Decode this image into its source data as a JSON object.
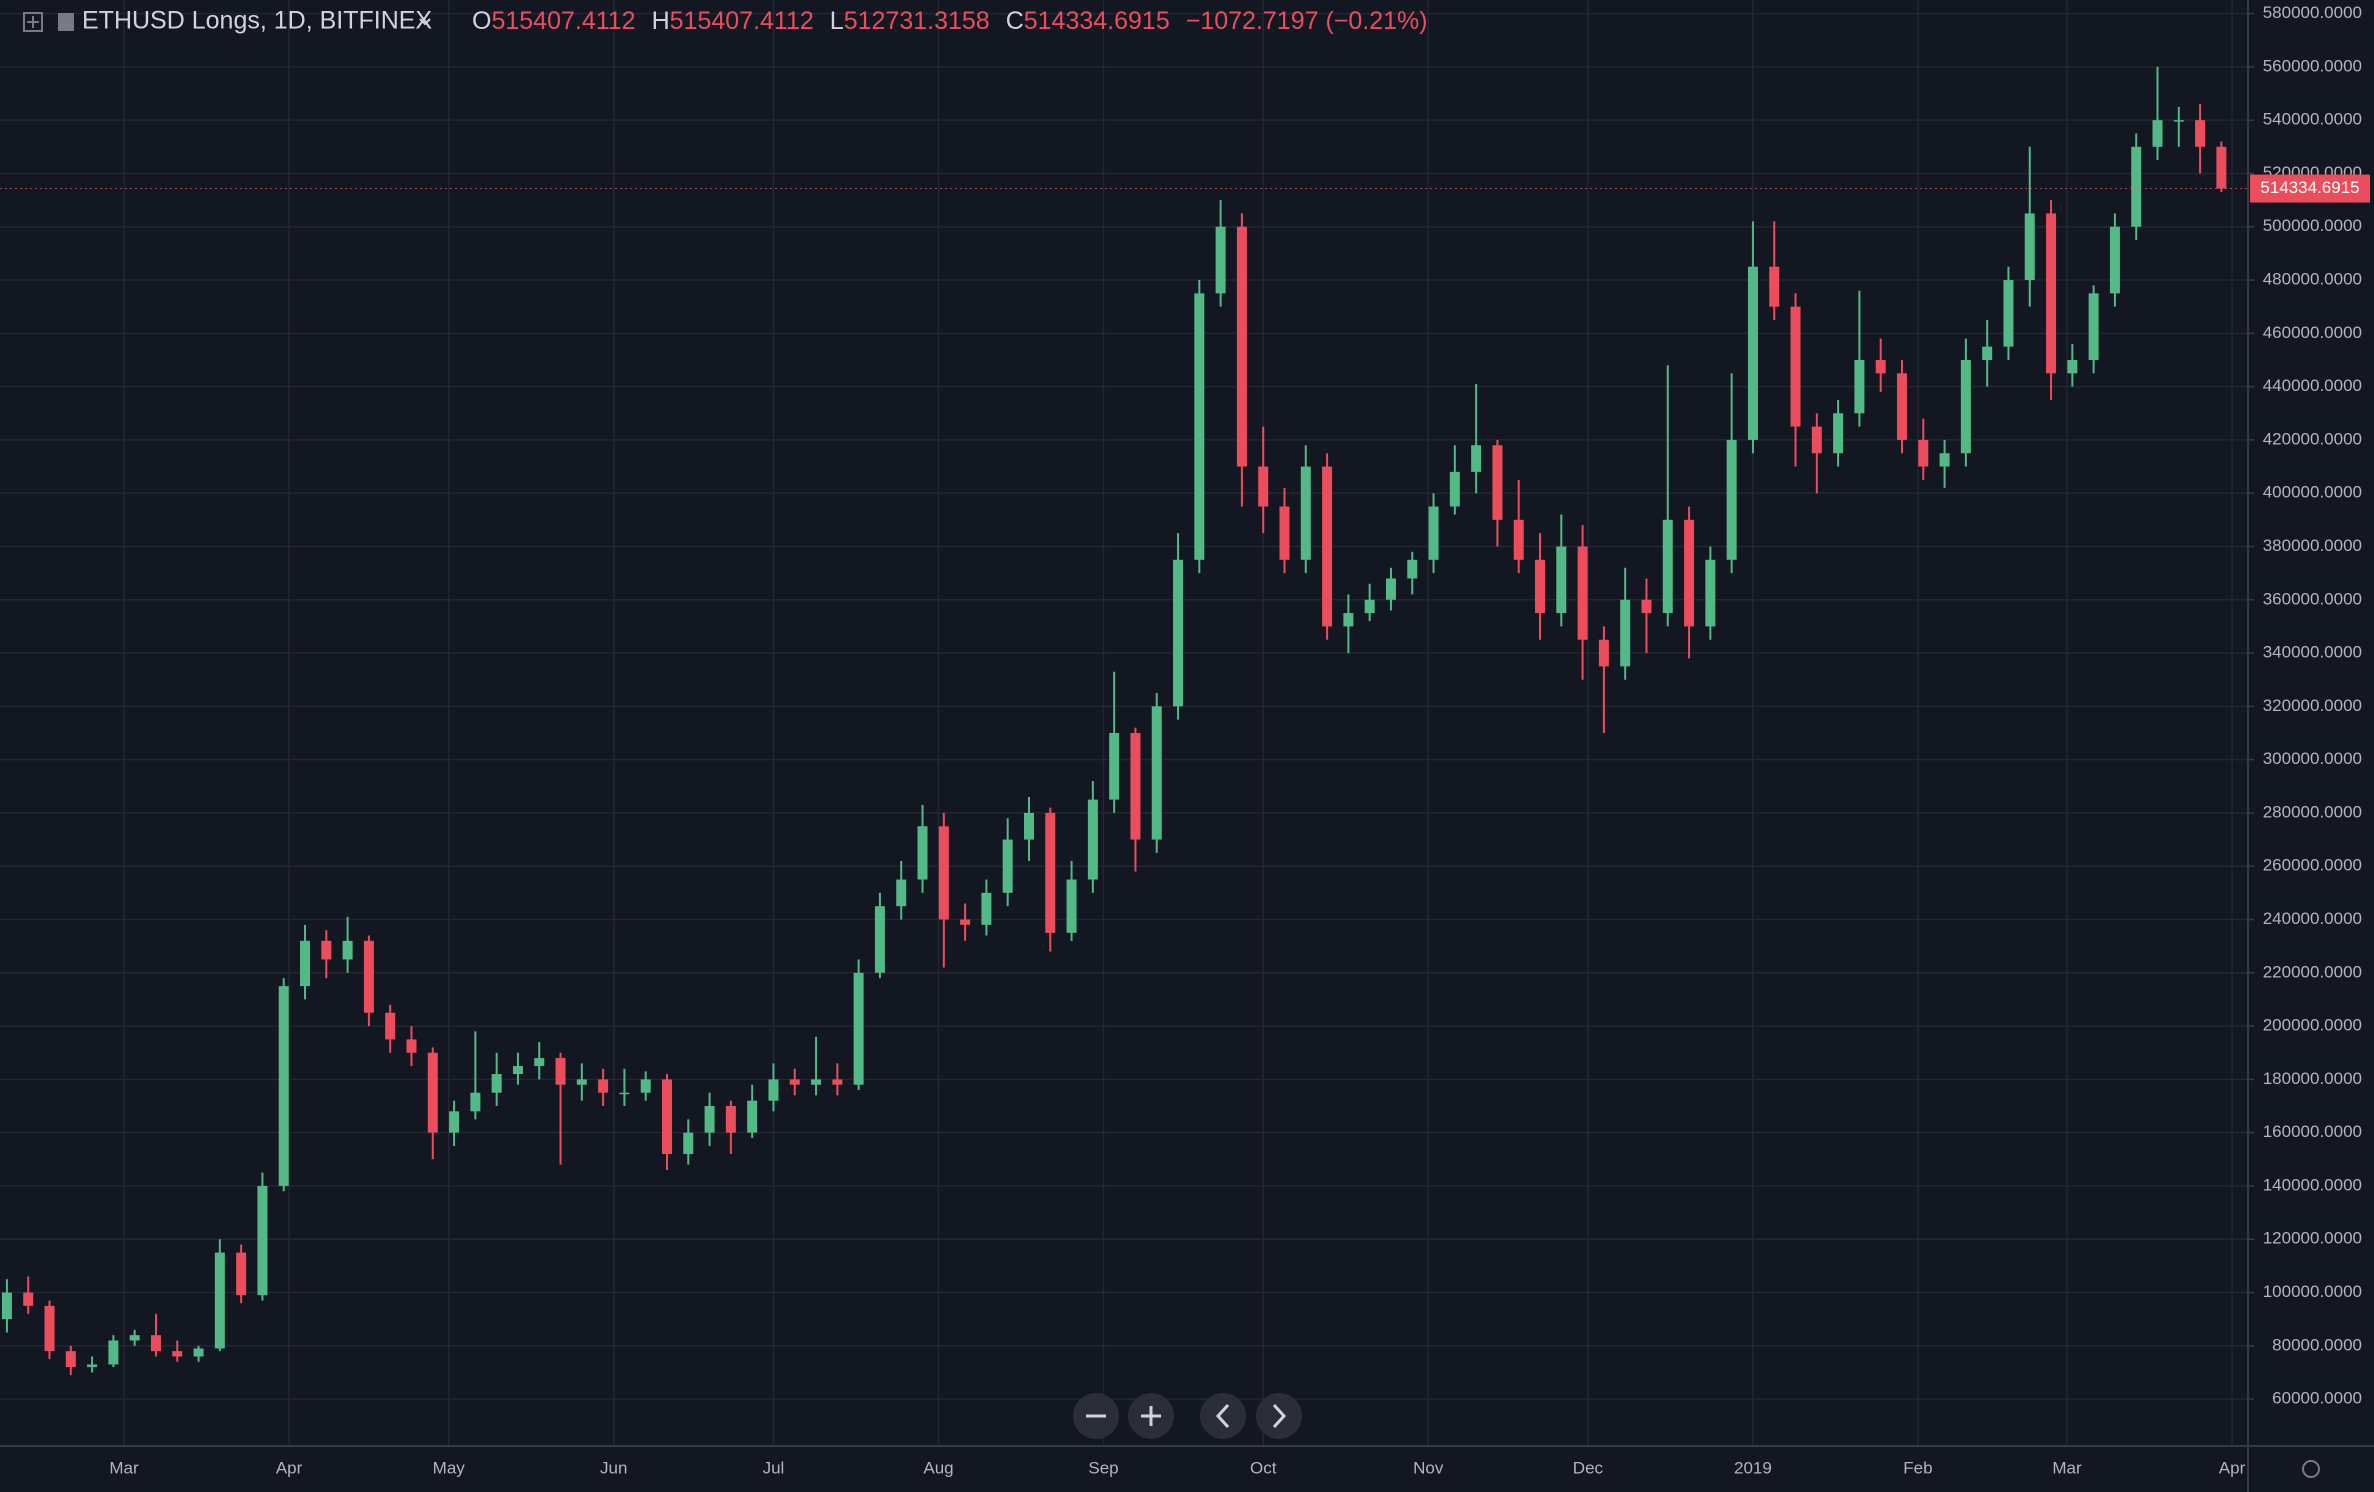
{
  "header": {
    "symbol": "ETHUSD Longs, 1D, BITFINEX",
    "ohlc": [
      {
        "key": "O",
        "value": "515407.4112"
      },
      {
        "key": "H",
        "value": "515407.4112"
      },
      {
        "key": "L",
        "value": "512731.3158"
      },
      {
        "key": "C",
        "value": "514334.6915"
      }
    ],
    "change": "−1072.7197 (−0.21%)"
  },
  "chart_data": {
    "type": "candlestick",
    "up_color": "#53b987",
    "down_color": "#eb4d5c",
    "grid": true,
    "xlim": [
      -23.3,
      399
    ],
    "ylim": [
      42400,
      585100
    ],
    "xticks": [
      {
        "value": 0,
        "label": "Mar"
      },
      {
        "value": 31,
        "label": "Apr"
      },
      {
        "value": 61,
        "label": "May"
      },
      {
        "value": 92,
        "label": "Jun"
      },
      {
        "value": 122,
        "label": "Jul"
      },
      {
        "value": 153,
        "label": "Aug"
      },
      {
        "value": 184,
        "label": "Sep"
      },
      {
        "value": 214,
        "label": "Oct"
      },
      {
        "value": 245,
        "label": "Nov"
      },
      {
        "value": 275,
        "label": "Dec"
      },
      {
        "value": 306,
        "label": "2019"
      },
      {
        "value": 337,
        "label": "Feb"
      },
      {
        "value": 365,
        "label": "Mar"
      },
      {
        "value": 396,
        "label": "Apr"
      }
    ],
    "yticks": [
      {
        "value": 60000,
        "label": "60000.0000"
      },
      {
        "value": 80000,
        "label": "80000.0000"
      },
      {
        "value": 100000,
        "label": "100000.0000"
      },
      {
        "value": 120000,
        "label": "120000.0000"
      },
      {
        "value": 140000,
        "label": "140000.0000"
      },
      {
        "value": 160000,
        "label": "160000.0000"
      },
      {
        "value": 180000,
        "label": "180000.0000"
      },
      {
        "value": 200000,
        "label": "200000.0000"
      },
      {
        "value": 220000,
        "label": "220000.0000"
      },
      {
        "value": 240000,
        "label": "240000.0000"
      },
      {
        "value": 260000,
        "label": "260000.0000"
      },
      {
        "value": 280000,
        "label": "280000.0000"
      },
      {
        "value": 300000,
        "label": "300000.0000"
      },
      {
        "value": 320000,
        "label": "320000.0000"
      },
      {
        "value": 340000,
        "label": "340000.0000"
      },
      {
        "value": 360000,
        "label": "360000.0000"
      },
      {
        "value": 380000,
        "label": "380000.0000"
      },
      {
        "value": 400000,
        "label": "400000.0000"
      },
      {
        "value": 420000,
        "label": "420000.0000"
      },
      {
        "value": 440000,
        "label": "440000.0000"
      },
      {
        "value": 460000,
        "label": "460000.0000"
      },
      {
        "value": 480000,
        "label": "480000.0000"
      },
      {
        "value": 500000,
        "label": "500000.0000"
      },
      {
        "value": 520000,
        "label": "520000.0000"
      },
      {
        "value": 540000,
        "label": "540000.0000"
      },
      {
        "value": 560000,
        "label": "560000.0000"
      },
      {
        "value": 580000,
        "label": "580000.0000"
      }
    ],
    "last_price": {
      "value": 514334.6915,
      "label": "514334.6915"
    },
    "x": [
      -22,
      -18,
      -14,
      -10,
      -6,
      -2,
      2,
      6,
      10,
      14,
      18,
      22,
      26,
      30,
      34,
      38,
      42,
      46,
      50,
      54,
      58,
      62,
      66,
      70,
      74,
      78,
      82,
      86,
      90,
      94,
      98,
      102,
      106,
      110,
      114,
      118,
      122,
      126,
      130,
      134,
      138,
      142,
      146,
      150,
      154,
      158,
      162,
      166,
      170,
      174,
      178,
      182,
      186,
      190,
      194,
      198,
      202,
      206,
      210,
      214,
      218,
      222,
      226,
      230,
      234,
      238,
      242,
      246,
      250,
      254,
      258,
      262,
      266,
      270,
      274,
      278,
      282,
      286,
      290,
      294,
      298,
      302,
      306,
      310,
      314,
      318,
      322,
      326,
      330,
      334,
      338,
      342,
      346,
      350,
      354,
      358,
      362,
      366,
      370,
      374,
      378,
      382,
      386,
      390,
      394
    ],
    "open": [
      90000,
      100000,
      95000,
      78000,
      72000,
      73000,
      82000,
      84000,
      78000,
      76000,
      79000,
      115000,
      99000,
      140000,
      215000,
      232000,
      225000,
      232000,
      205000,
      195000,
      190000,
      160000,
      168000,
      175000,
      182000,
      185000,
      188000,
      178000,
      180000,
      175000,
      175000,
      180000,
      152000,
      160000,
      170000,
      160000,
      172000,
      180000,
      178000,
      180000,
      178000,
      220000,
      245000,
      255000,
      275000,
      240000,
      238000,
      250000,
      270000,
      280000,
      235000,
      255000,
      285000,
      310000,
      270000,
      320000,
      375000,
      475000,
      500000,
      410000,
      395000,
      375000,
      410000,
      350000,
      355000,
      360000,
      368000,
      375000,
      395000,
      408000,
      418000,
      390000,
      375000,
      355000,
      380000,
      345000,
      335000,
      360000,
      355000,
      390000,
      350000,
      375000,
      420000,
      485000,
      470000,
      425000,
      415000,
      430000,
      450000,
      445000,
      420000,
      410000,
      415000,
      450000,
      455000,
      480000,
      505000,
      445000,
      450000,
      475000,
      500000,
      530000,
      540000,
      540000,
      530000
    ],
    "high": [
      105000,
      106000,
      97000,
      80000,
      76000,
      84000,
      86000,
      92000,
      82000,
      80000,
      120000,
      118000,
      145000,
      218000,
      238000,
      236000,
      241000,
      234000,
      208000,
      200000,
      192000,
      172000,
      198000,
      190000,
      190000,
      194000,
      190000,
      186000,
      184000,
      184000,
      183000,
      182000,
      165000,
      175000,
      172000,
      178000,
      186000,
      184000,
      196000,
      186000,
      225000,
      250000,
      262000,
      283000,
      280000,
      246000,
      255000,
      278000,
      286000,
      282000,
      262000,
      292000,
      333000,
      312000,
      325000,
      385000,
      480000,
      510000,
      505000,
      425000,
      402000,
      418000,
      415000,
      362000,
      366000,
      372000,
      378000,
      400000,
      418000,
      441000,
      420000,
      405000,
      385000,
      392000,
      388000,
      350000,
      372000,
      368000,
      448000,
      395000,
      380000,
      445000,
      502000,
      502000,
      475000,
      430000,
      435000,
      476000,
      458000,
      450000,
      428000,
      420000,
      458000,
      465000,
      485000,
      530000,
      510000,
      456000,
      478000,
      505000,
      535000,
      560000,
      545000,
      546000,
      532000
    ],
    "low": [
      85000,
      92000,
      75000,
      69000,
      70000,
      72000,
      80000,
      76000,
      74000,
      74000,
      78000,
      96000,
      97000,
      138000,
      210000,
      218000,
      220000,
      200000,
      190000,
      185000,
      150000,
      155000,
      165000,
      170000,
      178000,
      180000,
      148000,
      172000,
      170000,
      170000,
      172000,
      146000,
      148000,
      155000,
      152000,
      158000,
      168000,
      174000,
      174000,
      174000,
      176000,
      218000,
      240000,
      250000,
      222000,
      232000,
      234000,
      245000,
      262000,
      228000,
      232000,
      250000,
      280000,
      258000,
      265000,
      315000,
      370000,
      470000,
      395000,
      385000,
      370000,
      370000,
      345000,
      340000,
      352000,
      356000,
      362000,
      370000,
      392000,
      400000,
      380000,
      370000,
      345000,
      350000,
      330000,
      310000,
      330000,
      340000,
      350000,
      338000,
      345000,
      370000,
      415000,
      465000,
      410000,
      400000,
      410000,
      425000,
      438000,
      415000,
      405000,
      402000,
      410000,
      440000,
      450000,
      470000,
      435000,
      440000,
      445000,
      470000,
      495000,
      525000,
      530000,
      520000,
      513000
    ],
    "close": [
      100000,
      95000,
      78000,
      72000,
      73000,
      82000,
      84000,
      78000,
      76000,
      79000,
      115000,
      99000,
      140000,
      215000,
      232000,
      225000,
      232000,
      205000,
      195000,
      190000,
      160000,
      168000,
      175000,
      182000,
      185000,
      188000,
      178000,
      180000,
      175000,
      175000,
      180000,
      152000,
      160000,
      170000,
      160000,
      172000,
      180000,
      178000,
      180000,
      178000,
      220000,
      245000,
      255000,
      275000,
      240000,
      238000,
      250000,
      270000,
      280000,
      235000,
      255000,
      285000,
      310000,
      270000,
      320000,
      375000,
      475000,
      500000,
      410000,
      395000,
      375000,
      410000,
      350000,
      355000,
      360000,
      368000,
      375000,
      395000,
      408000,
      418000,
      390000,
      375000,
      355000,
      380000,
      345000,
      335000,
      360000,
      355000,
      390000,
      350000,
      375000,
      420000,
      485000,
      470000,
      425000,
      415000,
      430000,
      450000,
      445000,
      420000,
      410000,
      415000,
      450000,
      455000,
      480000,
      505000,
      445000,
      450000,
      475000,
      500000,
      530000,
      540000,
      540000,
      530000,
      514335
    ]
  }
}
